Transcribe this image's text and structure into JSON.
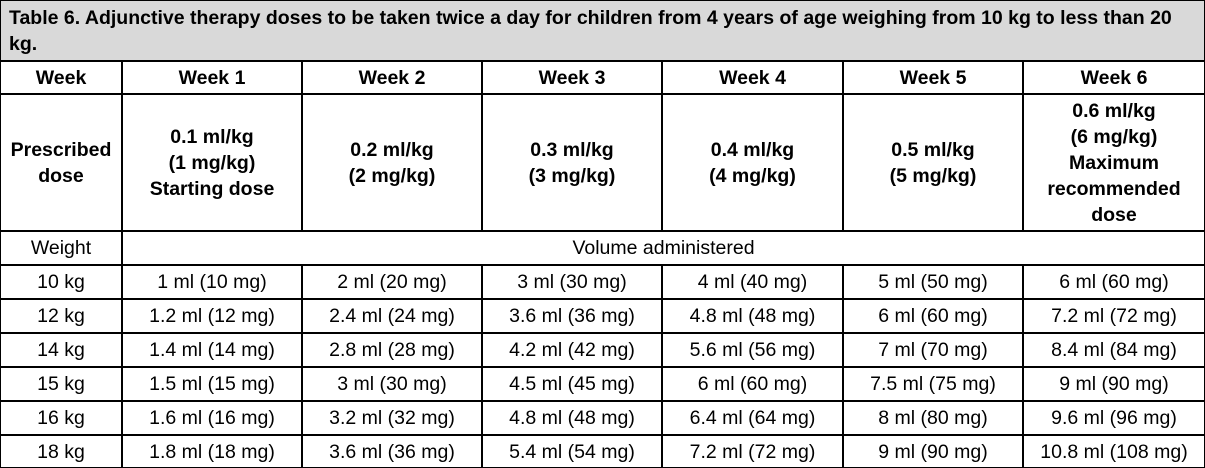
{
  "caption": {
    "label": "Table 6.",
    "title": "Adjunctive therapy doses to be taken twice a day for children from 4 years of age weighing from 10 kg to less than 20 kg."
  },
  "header": {
    "week_label": "Week",
    "weeks": [
      "Week 1",
      "Week 2",
      "Week 3",
      "Week 4",
      "Week 5",
      "Week 6"
    ]
  },
  "prescribed": {
    "label": "Prescribed dose",
    "doses": [
      {
        "ml": "0.1 ml/kg",
        "mg": "(1 mg/kg)",
        "note": "Starting dose"
      },
      {
        "ml": "0.2 ml/kg",
        "mg": "(2 mg/kg)",
        "note": ""
      },
      {
        "ml": "0.3 ml/kg",
        "mg": "(3 mg/kg)",
        "note": ""
      },
      {
        "ml": "0.4 ml/kg",
        "mg": "(4 mg/kg)",
        "note": ""
      },
      {
        "ml": "0.5 ml/kg",
        "mg": "(5 mg/kg)",
        "note": ""
      },
      {
        "ml": "0.6 ml/kg",
        "mg": "(6 mg/kg)",
        "note": "Maximum recommended dose"
      }
    ]
  },
  "weight_row": {
    "label": "Weight",
    "volume_label": "Volume administered"
  },
  "rows": [
    {
      "weight": "10 kg",
      "values": [
        "1 ml (10 mg)",
        "2 ml (20 mg)",
        "3 ml (30 mg)",
        "4 ml (40 mg)",
        "5 ml (50 mg)",
        "6 ml (60 mg)"
      ]
    },
    {
      "weight": "12 kg",
      "values": [
        "1.2 ml (12 mg)",
        "2.4 ml (24 mg)",
        "3.6 ml (36 mg)",
        "4.8 ml (48 mg)",
        "6 ml (60 mg)",
        "7.2 ml (72 mg)"
      ]
    },
    {
      "weight": "14 kg",
      "values": [
        "1.4 ml (14 mg)",
        "2.8 ml (28 mg)",
        "4.2 ml (42 mg)",
        "5.6 ml (56 mg)",
        "7 ml (70 mg)",
        "8.4 ml (84 mg)"
      ]
    },
    {
      "weight": "15 kg",
      "values": [
        "1.5 ml (15 mg)",
        "3 ml (30 mg)",
        "4.5 ml (45 mg)",
        "6 ml (60 mg)",
        "7.5 ml (75 mg)",
        "9 ml (90 mg)"
      ]
    },
    {
      "weight": "16 kg",
      "values": [
        "1.6 ml (16 mg)",
        "3.2 ml (32 mg)",
        "4.8 ml (48 mg)",
        "6.4 ml (64 mg)",
        "8 ml (80 mg)",
        "9.6 ml (96 mg)"
      ]
    },
    {
      "weight": "18 kg",
      "values": [
        "1.8 ml (18 mg)",
        "3.6 ml (36 mg)",
        "5.4 ml (54 mg)",
        "7.2 ml (72 mg)",
        "9 ml (90 mg)",
        "10.8 ml (108 mg)"
      ]
    }
  ],
  "colors": {
    "caption_background": "#d9d9d9",
    "border": "#000000",
    "text": "#000000"
  }
}
